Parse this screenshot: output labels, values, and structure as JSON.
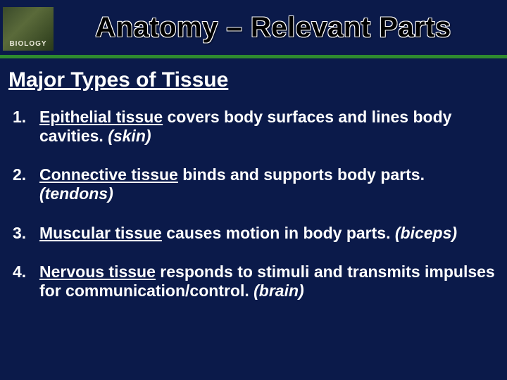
{
  "header": {
    "logo_label": "BIOLOGY",
    "title": "Anatomy – Relevant Parts"
  },
  "subtitle": "Major Types of Tissue",
  "divider_color": "#2e8b2e",
  "background_color": "#0b1a4a",
  "text_color": "#ffffff",
  "items": [
    {
      "name": "Epithelial tissue",
      "description": " covers body surfaces and lines body cavities. ",
      "example": "(skin)"
    },
    {
      "name": "Connective tissue",
      "description": " binds and supports body parts. ",
      "example": "(tendons)"
    },
    {
      "name": "Muscular tissue",
      "description": " causes motion in body parts. ",
      "example": "(biceps)"
    },
    {
      "name": "Nervous tissue",
      "description": " responds to stimuli and transmits impulses for communication/control. ",
      "example": "(brain)"
    }
  ]
}
